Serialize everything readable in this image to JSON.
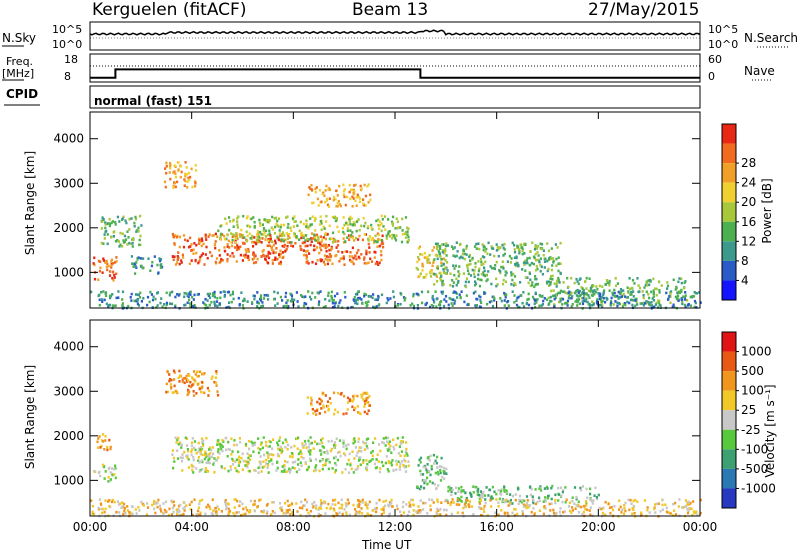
{
  "header": {
    "station": "Kerguelen (fitACF)",
    "beam": "Beam 13",
    "date": "27/May/2015"
  },
  "strip1": {
    "left_label": "N.Sky",
    "left_ticks": [
      "10^5",
      "10^0"
    ],
    "right_ticks": [
      "10^5",
      "10^0"
    ],
    "right_label": "N.Search"
  },
  "strip2": {
    "left_label_top": "Freq.",
    "left_label_unit": "[MHz]",
    "left_ticks": [
      "18",
      "8"
    ],
    "right_ticks": [
      "60",
      "0"
    ],
    "right_label": "Nave"
  },
  "cpid": {
    "label": "CPID",
    "mode": "normal (fast) 151"
  },
  "freq_steps": [
    {
      "from": 0,
      "to": 1.0,
      "value": 9.5
    },
    {
      "from": 1.0,
      "to": 13.0,
      "value": 12.5
    },
    {
      "from": 13.0,
      "to": 24,
      "value": 9.5
    }
  ],
  "chart_data": [
    {
      "type": "heatmap",
      "name": "power",
      "ylabel": "Slant Range [km]",
      "yticks": [
        "1000",
        "2000",
        "3000",
        "4000"
      ],
      "ylim": [
        200,
        4600
      ],
      "xlim": [
        0,
        24
      ],
      "colorbar_label": "Power [dB]",
      "colorbar_ticks": [
        "4",
        "8",
        "12",
        "16",
        "20",
        "24",
        "28"
      ],
      "colors": [
        "#1414ff",
        "#2a5cc8",
        "#3c9a8c",
        "#4cb050",
        "#a8c83c",
        "#f0d030",
        "#f0a028",
        "#f06a20",
        "#e82814"
      ],
      "regions": [
        {
          "t": [
            0.1,
            1.0
          ],
          "r": [
            800,
            1400
          ],
          "level": 7
        },
        {
          "t": [
            0.4,
            2.0
          ],
          "r": [
            1600,
            2300
          ],
          "level": 3
        },
        {
          "t": [
            1.6,
            2.8
          ],
          "r": [
            1000,
            1400
          ],
          "level": 2
        },
        {
          "t": [
            2.9,
            4.2
          ],
          "r": [
            2900,
            3500
          ],
          "level": 6
        },
        {
          "t": [
            3.2,
            11.5
          ],
          "r": [
            1200,
            1900
          ],
          "level": 7
        },
        {
          "t": [
            5.0,
            12.5
          ],
          "r": [
            1700,
            2300
          ],
          "level": 4
        },
        {
          "t": [
            8.5,
            11.0
          ],
          "r": [
            2500,
            3000
          ],
          "level": 6
        },
        {
          "t": [
            12.8,
            14.0
          ],
          "r": [
            900,
            1600
          ],
          "level": 5
        },
        {
          "t": [
            13.5,
            18.5
          ],
          "r": [
            700,
            1700
          ],
          "level": 3
        },
        {
          "t": [
            18.0,
            23.5
          ],
          "r": [
            300,
            900
          ],
          "level": 3
        },
        {
          "t": [
            0.0,
            24
          ],
          "r": [
            220,
            600
          ],
          "level": 2
        }
      ]
    },
    {
      "type": "heatmap",
      "name": "velocity",
      "ylabel": "Slant Range [km]",
      "xlabel": "Time UT",
      "xticks": [
        "00:00",
        "04:00",
        "08:00",
        "12:00",
        "16:00",
        "20:00",
        "00:00"
      ],
      "yticks": [
        "1000",
        "2000",
        "3000",
        "4000"
      ],
      "ylim": [
        200,
        4600
      ],
      "xlim": [
        0,
        24
      ],
      "colorbar_label": "Velocity [m s⁻¹]",
      "colorbar_ticks": [
        "1000",
        "500",
        "100",
        "25",
        "-25",
        "-100",
        "-500",
        "-1000"
      ],
      "colors": [
        "#2838c0",
        "#2a78b4",
        "#3ca070",
        "#58c83c",
        "#c8c8c8",
        "#f0c828",
        "#f0961e",
        "#e85a14",
        "#e01414"
      ],
      "regions": [
        {
          "t": [
            0.1,
            1.0
          ],
          "r": [
            1000,
            1400
          ],
          "level": 4
        },
        {
          "t": [
            0.2,
            0.8
          ],
          "r": [
            1700,
            2100
          ],
          "level": 6
        },
        {
          "t": [
            2.9,
            5.0
          ],
          "r": [
            2900,
            3500
          ],
          "level": 6
        },
        {
          "t": [
            3.2,
            12.5
          ],
          "r": [
            1200,
            2000
          ],
          "level": 4
        },
        {
          "t": [
            8.5,
            11.0
          ],
          "r": [
            2500,
            3000
          ],
          "level": 6
        },
        {
          "t": [
            12.8,
            14.0
          ],
          "r": [
            800,
            1600
          ],
          "level": 3
        },
        {
          "t": [
            14.0,
            20.0
          ],
          "r": [
            500,
            900
          ],
          "level": 3
        },
        {
          "t": [
            0.0,
            24
          ],
          "r": [
            220,
            600
          ],
          "level": 5
        }
      ]
    }
  ]
}
